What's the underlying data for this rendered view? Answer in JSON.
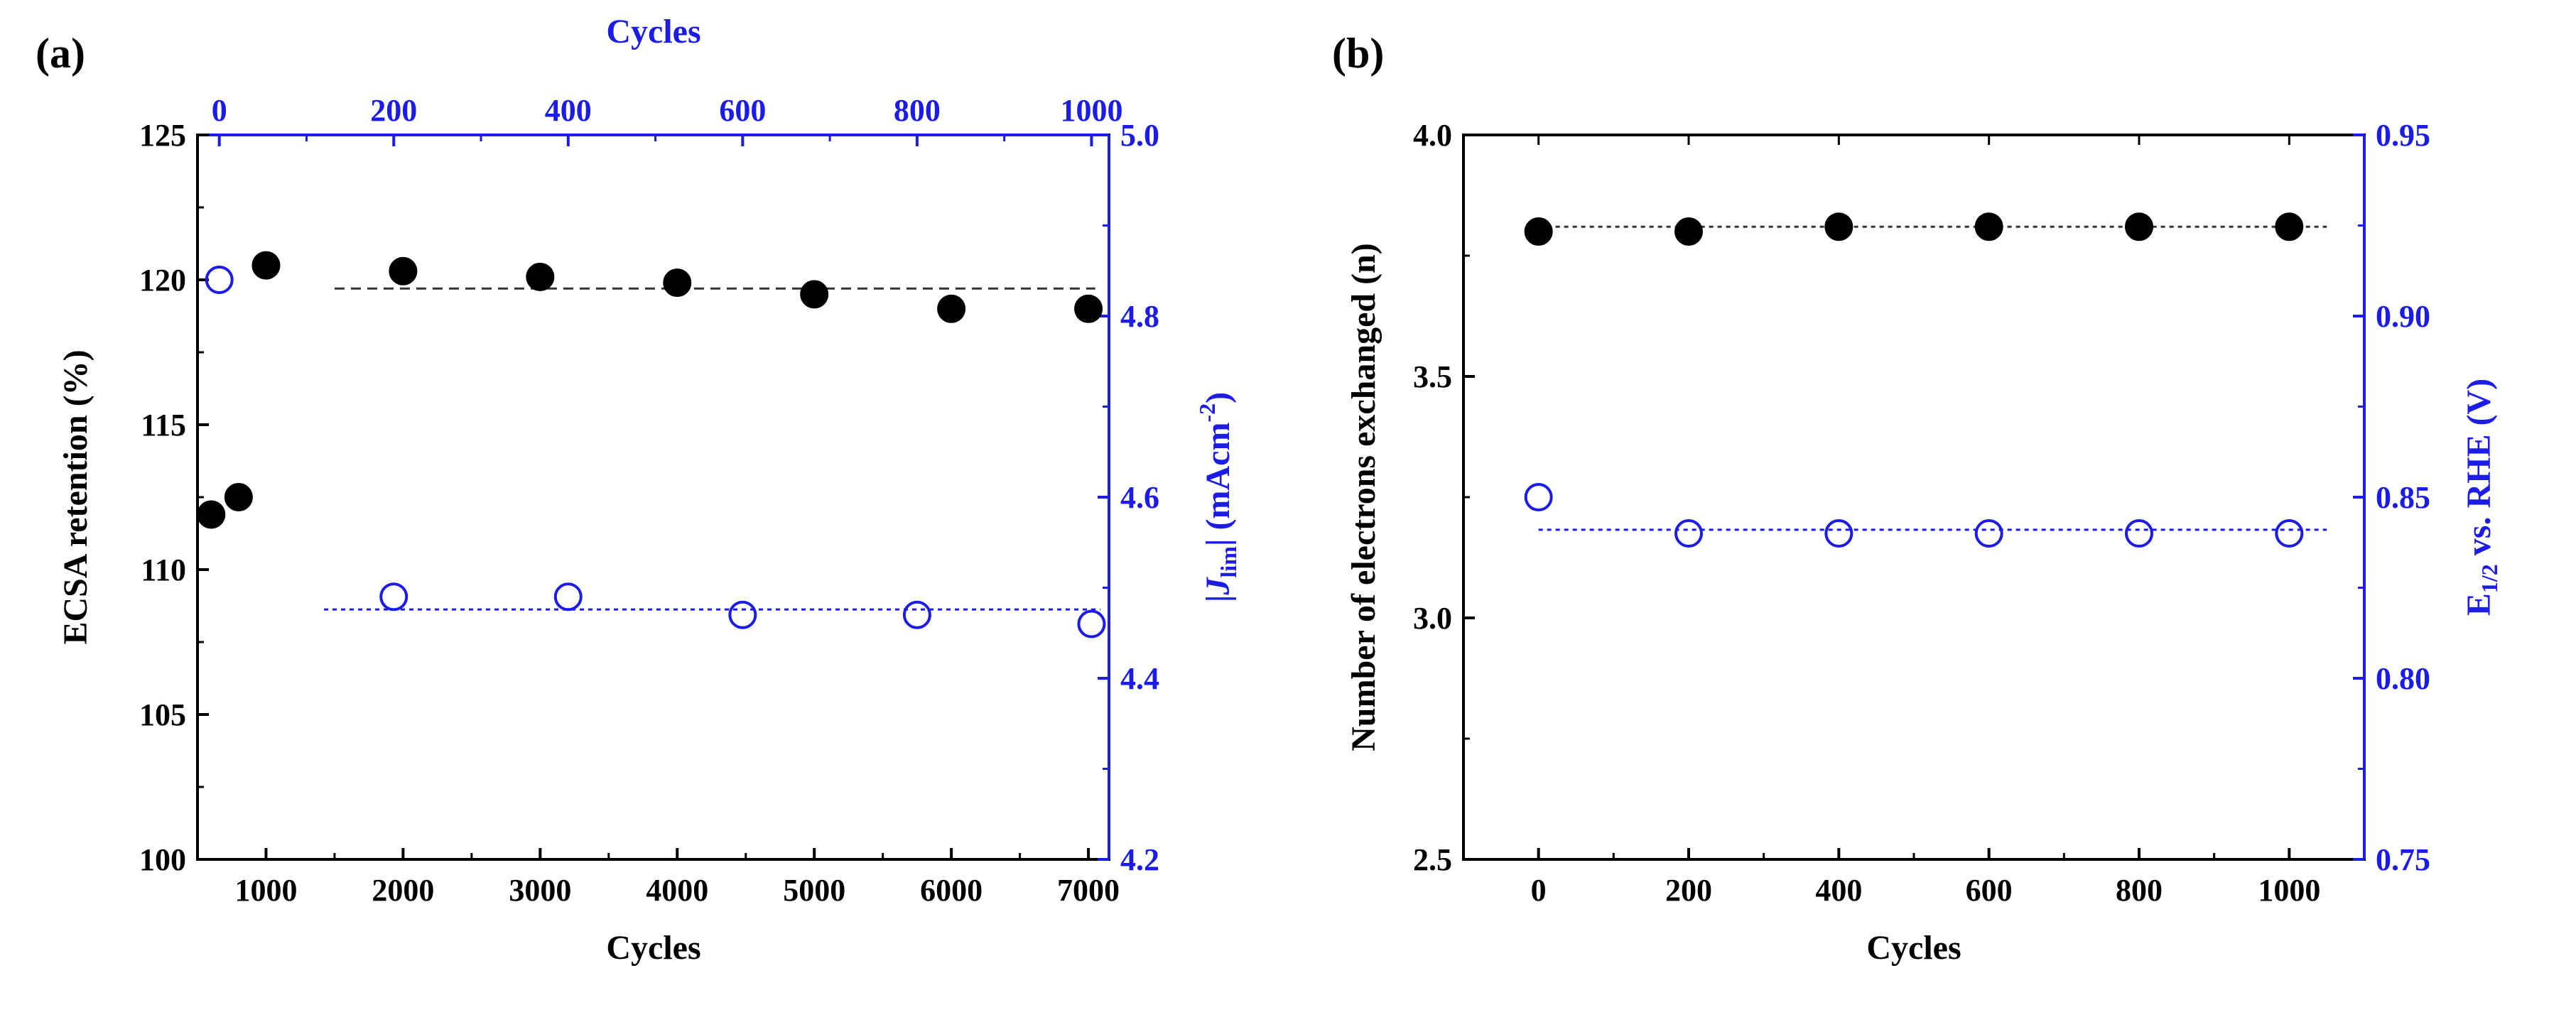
{
  "colors": {
    "black": "#000000",
    "blue": "#1c1ce6",
    "gridBlack": "#333333",
    "gridBlue": "#1c1ce6"
  },
  "chart_data": [
    {
      "type": "scatter",
      "panel_label": "(a)",
      "bottom_axis": {
        "label": "Cycles",
        "ticks": [
          "1000",
          "2000",
          "3000",
          "4000",
          "5000",
          "6000",
          "7000"
        ],
        "tick_values": [
          1000,
          2000,
          3000,
          4000,
          5000,
          6000,
          7000
        ],
        "range": [
          500,
          7150
        ]
      },
      "top_axis": {
        "label": "Cycles",
        "ticks": [
          "0",
          "200",
          "400",
          "600",
          "800",
          "1000"
        ],
        "tick_values": [
          0,
          200,
          400,
          600,
          800,
          1000
        ],
        "range": [
          -25,
          1020
        ]
      },
      "left_axis": {
        "label": "ECSA retention (%)",
        "ticks": [
          "100",
          "105",
          "110",
          "115",
          "120",
          "125"
        ],
        "tick_values": [
          100,
          105,
          110,
          115,
          120,
          125
        ],
        "range": [
          100,
          125
        ]
      },
      "right_axis": {
        "label_open": "|",
        "label_J": "J",
        "label_sub": "lim",
        "label_mid": "| (mAcm",
        "label_sup": "-2",
        "label_close": ")",
        "ticks": [
          "4.2",
          "4.4",
          "4.6",
          "4.8",
          "5.0"
        ],
        "tick_values": [
          4.2,
          4.4,
          4.6,
          4.8,
          5.0
        ],
        "range": [
          4.2,
          5.0
        ]
      },
      "series": [
        {
          "name": "ECSA retention",
          "axes": "bottom-left",
          "marker": "filled-circle",
          "x": [
            600,
            800,
            1000,
            2000,
            3000,
            4000,
            5000,
            6000,
            7000
          ],
          "y": [
            111.9,
            112.5,
            120.5,
            120.3,
            120.1,
            119.9,
            119.5,
            119.0,
            119.0
          ]
        },
        {
          "name": "|J_lim|",
          "axes": "top-right",
          "marker": "open-circle",
          "x": [
            0,
            200,
            400,
            600,
            800,
            1000
          ],
          "y": [
            4.84,
            4.49,
            4.49,
            4.47,
            4.47,
            4.46
          ]
        }
      ],
      "reference_lines": [
        {
          "axes": "bottom-left",
          "x": [
            1500,
            7050
          ],
          "y": 119.7,
          "style": "dashed"
        },
        {
          "axes": "top-right",
          "x": [
            120,
            1010
          ],
          "y": 4.476,
          "style": "dotted"
        }
      ]
    },
    {
      "type": "scatter",
      "panel_label": "(b)",
      "bottom_axis": {
        "label": "Cycles",
        "ticks": [
          "0",
          "200",
          "400",
          "600",
          "800",
          "1000"
        ],
        "tick_values": [
          0,
          200,
          400,
          600,
          800,
          1000
        ],
        "range": [
          -100,
          1100
        ]
      },
      "left_axis": {
        "label": "Number of electrons exchanged (n)",
        "ticks": [
          "2.5",
          "3.0",
          "3.5",
          "4.0"
        ],
        "tick_values": [
          2.5,
          3.0,
          3.5,
          4.0
        ],
        "range": [
          2.5,
          4.0
        ]
      },
      "right_axis": {
        "label_main": "E",
        "label_sub": "1/2",
        "label_rest": " vs. RHE (V)",
        "ticks": [
          "0.75",
          "0.80",
          "0.85",
          "0.90",
          "0.95"
        ],
        "tick_values": [
          0.75,
          0.8,
          0.85,
          0.9,
          0.95
        ],
        "range": [
          0.75,
          0.95
        ]
      },
      "series": [
        {
          "name": "n",
          "axes": "bottom-left",
          "marker": "filled-circle",
          "x": [
            0,
            200,
            400,
            600,
            800,
            1000
          ],
          "y": [
            3.8,
            3.8,
            3.81,
            3.81,
            3.81,
            3.81
          ]
        },
        {
          "name": "E1/2",
          "axes": "bottom-right",
          "marker": "open-circle",
          "x": [
            0,
            200,
            400,
            600,
            800,
            1000
          ],
          "y": [
            0.85,
            0.84,
            0.84,
            0.84,
            0.84,
            0.84
          ]
        }
      ],
      "reference_lines": [
        {
          "axes": "bottom-left",
          "x": [
            0,
            1050
          ],
          "y": 3.81,
          "style": "dotted"
        },
        {
          "axes": "bottom-right",
          "x": [
            0,
            1050
          ],
          "y": 0.841,
          "style": "dotted"
        }
      ]
    }
  ]
}
